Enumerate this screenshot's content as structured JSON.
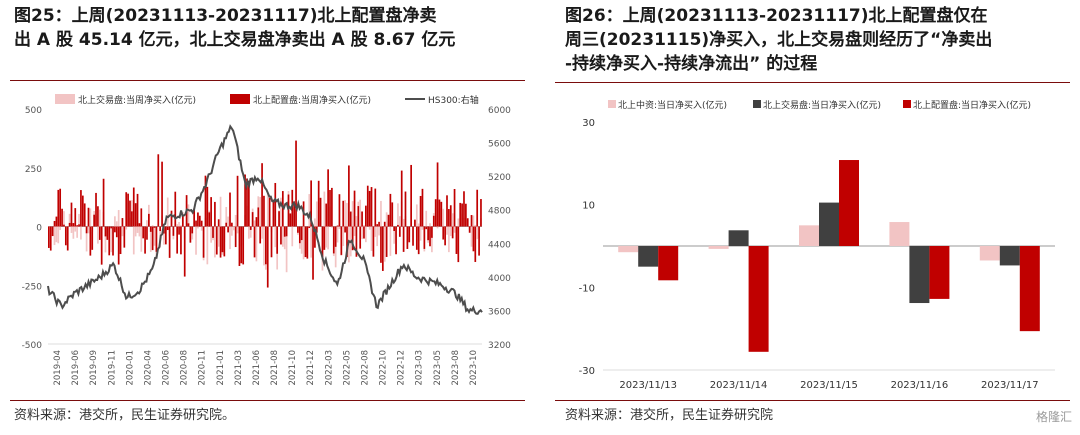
{
  "left": {
    "title_lines": [
      "图25：上周(20231113-20231117)北上配置盘净卖",
      "出 A 股 45.14 亿元，北上交易盘净卖出 A 股 8.67 亿元"
    ],
    "source": "资料来源：港交所，民生证券研究院。"
  },
  "right": {
    "title_lines": [
      "图26：上周(20231113-20231117)北上配置盘仅在",
      "周三(20231115)净买入，北上交易盘则经历了“净卖出",
      "-持续净买入-持续净流出” 的过程"
    ],
    "source": "资料来源：港交所，民生证券研究院"
  },
  "watermark": "格隆汇",
  "chart_data": [
    {
      "type": "bar",
      "series": [
        {
          "name": "北上交易盘:当周净买入(亿元)",
          "color": "#f2c4c4",
          "axis": "left"
        },
        {
          "name": "北上配置盘:当周净买入(亿元)",
          "color": "#c00000",
          "axis": "left"
        },
        {
          "name": "HS300:右轴",
          "color": "#4d4d4d",
          "type": "line",
          "axis": "right",
          "anchors": [
            [
              "2019-04",
              3850
            ],
            [
              "2019-06",
              3650
            ],
            [
              "2019-08",
              3800
            ],
            [
              "2019-10",
              3900
            ],
            [
              "2019-12",
              4000
            ],
            [
              "2020-01",
              4150
            ],
            [
              "2020-03",
              3750
            ],
            [
              "2020-04",
              3850
            ],
            [
              "2020-06",
              4100
            ],
            [
              "2020-07",
              4700
            ],
            [
              "2020-08",
              4750
            ],
            [
              "2020-10",
              4800
            ],
            [
              "2020-12",
              5100
            ],
            [
              "2021-01",
              5500
            ],
            [
              "2021-02",
              5800
            ],
            [
              "2021-03",
              5100
            ],
            [
              "2021-05",
              5200
            ],
            [
              "2021-07",
              4900
            ],
            [
              "2021-09",
              4850
            ],
            [
              "2021-11",
              4850
            ],
            [
              "2022-01",
              4700
            ],
            [
              "2022-03",
              4200
            ],
            [
              "2022-04",
              3900
            ],
            [
              "2022-06",
              4450
            ],
            [
              "2022-08",
              4200
            ],
            [
              "2022-10",
              3650
            ],
            [
              "2022-11",
              3900
            ],
            [
              "2023-01",
              4150
            ],
            [
              "2023-03",
              4000
            ],
            [
              "2023-05",
              3950
            ],
            [
              "2023-07",
              3900
            ],
            [
              "2023-08",
              3800
            ],
            [
              "2023-10",
              3600
            ],
            [
              "2023-11",
              3600
            ]
          ]
        }
      ],
      "x_ticks": [
        "2019-04",
        "2019-06",
        "2019-09",
        "2019-11",
        "2020-01",
        "2020-04",
        "2020-06",
        "2020-08",
        "2020-11",
        "2021-01",
        "2021-03",
        "2021-06",
        "2021-08",
        "2021-10",
        "2021-12",
        "2022-03",
        "2022-05",
        "2022-08",
        "2022-10",
        "2022-12",
        "2023-03",
        "2023-05",
        "2023-08",
        "2023-10"
      ],
      "y_left_ticks": [
        500,
        250,
        0,
        -250,
        -500
      ],
      "y_right_ticks": [
        6000,
        5600,
        5200,
        4800,
        4400,
        4000,
        3600,
        3200
      ],
      "ylim": [
        -500,
        500
      ],
      "y2lim": [
        3200,
        6000
      ],
      "legend": "top"
    },
    {
      "type": "bar",
      "categories": [
        "2023/11/13",
        "2023/11/14",
        "2023/11/15",
        "2023/11/16",
        "2023/11/17"
      ],
      "series": [
        {
          "name": "北上中资:当日净买入(亿元)",
          "color": "#f2c4c4",
          "values": [
            -1.5,
            -0.7,
            5,
            5.8,
            -3.5
          ]
        },
        {
          "name": "北上交易盘:当日净买入(亿元)",
          "color": "#404040",
          "values": [
            -5,
            3.8,
            10.5,
            -13.8,
            -4.7
          ]
        },
        {
          "name": "北上配置盘:当日净买入(亿元)",
          "color": "#c00000",
          "values": [
            -8.3,
            -25.6,
            20.8,
            -12.8,
            -20.6
          ]
        }
      ],
      "y_ticks": [
        30,
        10,
        -10,
        -30
      ],
      "ylim": [
        -30,
        30
      ],
      "legend": "top"
    }
  ]
}
